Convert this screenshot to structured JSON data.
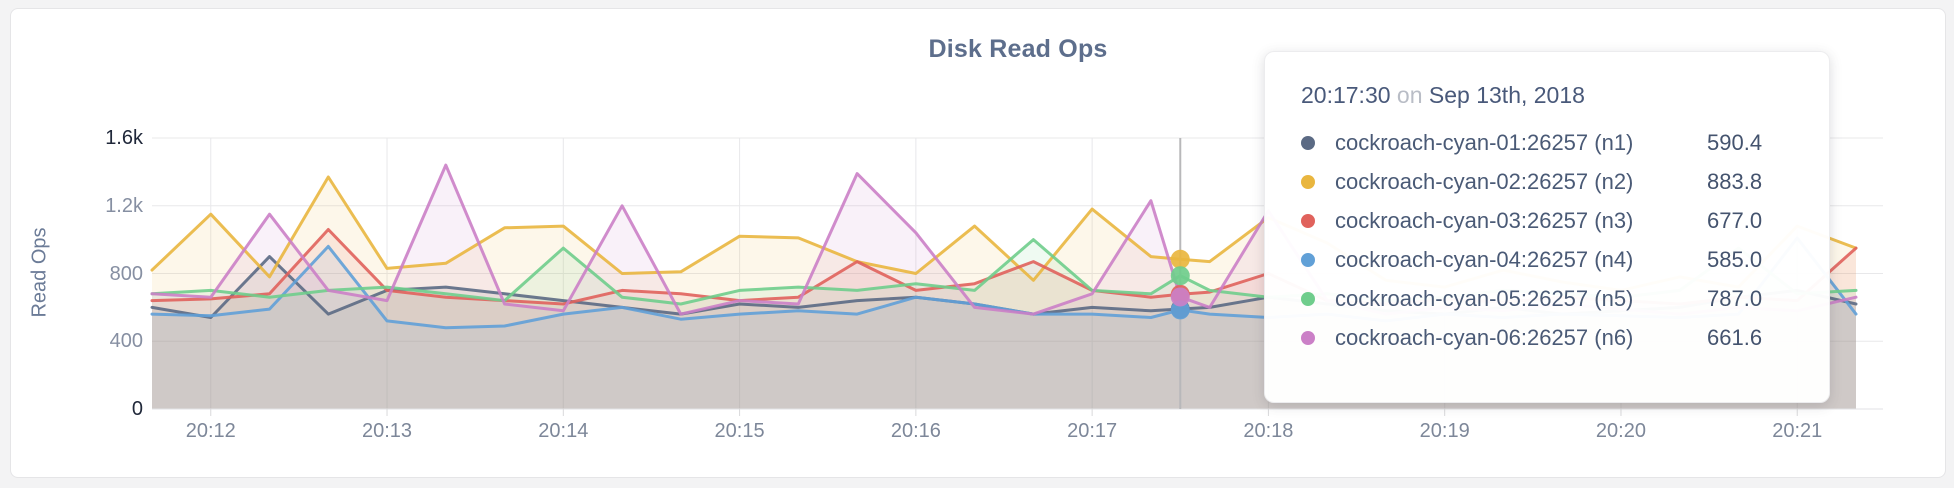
{
  "page": {
    "title": "Disk Read Ops"
  },
  "tooltip": {
    "time": "20:17:30",
    "preposition": "on",
    "date": "Sep 13th, 2018",
    "rows": [
      {
        "name": "cockroach-cyan-01:26257 (n1)",
        "value": "590.4",
        "color": "#5b6a84"
      },
      {
        "name": "cockroach-cyan-02:26257 (n2)",
        "value": "883.8",
        "color": "#e9b63f"
      },
      {
        "name": "cockroach-cyan-03:26257 (n3)",
        "value": "677.0",
        "color": "#e0625c"
      },
      {
        "name": "cockroach-cyan-04:26257 (n4)",
        "value": "585.0",
        "color": "#61a0d7"
      },
      {
        "name": "cockroach-cyan-05:26257 (n5)",
        "value": "787.0",
        "color": "#6fcd8c"
      },
      {
        "name": "cockroach-cyan-06:26257 (n6)",
        "value": "661.6",
        "color": "#cb80c7"
      }
    ]
  },
  "chart_data": {
    "type": "area",
    "title": "Disk Read Ops",
    "xlabel": "",
    "ylabel": "Read Ops",
    "ylim": [
      0,
      1600
    ],
    "grid": true,
    "legend_position": "tooltip",
    "x_domain_seconds": [
      0,
      580
    ],
    "x_start_time": "20:11:40",
    "x_seconds": [
      0,
      20,
      40,
      60,
      80,
      100,
      120,
      140,
      160,
      180,
      200,
      220,
      240,
      260,
      280,
      300,
      320,
      340,
      350,
      360,
      380,
      400,
      420,
      440,
      460,
      480,
      500,
      520,
      540,
      560,
      580
    ],
    "yticks": [
      {
        "value": 1600,
        "label": "1.6k",
        "strong": true
      },
      {
        "value": 1200,
        "label": "1.2k",
        "strong": false
      },
      {
        "value": 800,
        "label": "800",
        "strong": false
      },
      {
        "value": 400,
        "label": "400",
        "strong": false
      },
      {
        "value": 0,
        "label": "0",
        "strong": true
      }
    ],
    "xticks": [
      {
        "t": 20,
        "label": "20:12"
      },
      {
        "t": 80,
        "label": "20:13"
      },
      {
        "t": 140,
        "label": "20:14"
      },
      {
        "t": 200,
        "label": "20:15"
      },
      {
        "t": 260,
        "label": "20:16"
      },
      {
        "t": 320,
        "label": "20:17"
      },
      {
        "t": 380,
        "label": "20:18"
      },
      {
        "t": 440,
        "label": "20:19"
      },
      {
        "t": 500,
        "label": "20:20"
      },
      {
        "t": 560,
        "label": "20:21"
      }
    ],
    "hover": {
      "t": 350,
      "time_label": "20:17:30",
      "date_label": "Sep 13th, 2018"
    },
    "series": [
      {
        "name": "cockroach-cyan-01:26257 (n1)",
        "color": "#5b6a84",
        "values": [
          600,
          540,
          900,
          560,
          700,
          720,
          680,
          640,
          600,
          560,
          620,
          600,
          640,
          660,
          620,
          560,
          600,
          580,
          590.4,
          600,
          660,
          620,
          580,
          560,
          600,
          560,
          580,
          600,
          660,
          700,
          620
        ]
      },
      {
        "name": "cockroach-cyan-02:26257 (n2)",
        "color": "#e9b63f",
        "values": [
          820,
          1150,
          780,
          1370,
          830,
          860,
          1070,
          1080,
          800,
          810,
          1020,
          1010,
          870,
          800,
          1080,
          760,
          1180,
          900,
          883.8,
          870,
          1130,
          980,
          760,
          720,
          820,
          750,
          700,
          780,
          720,
          1080,
          950
        ]
      },
      {
        "name": "cockroach-cyan-03:26257 (n3)",
        "color": "#e0625c",
        "values": [
          640,
          650,
          680,
          1060,
          700,
          660,
          640,
          620,
          700,
          680,
          640,
          660,
          870,
          700,
          740,
          870,
          700,
          660,
          677,
          690,
          800,
          640,
          620,
          650,
          630,
          660,
          640,
          620,
          660,
          640,
          950
        ]
      },
      {
        "name": "cockroach-cyan-04:26257 (n4)",
        "color": "#61a0d7",
        "values": [
          560,
          550,
          590,
          960,
          520,
          480,
          490,
          560,
          600,
          530,
          560,
          580,
          560,
          660,
          620,
          560,
          560,
          540,
          585,
          560,
          540,
          560,
          520,
          560,
          540,
          560,
          550,
          540,
          560,
          1010,
          560
        ]
      },
      {
        "name": "cockroach-cyan-05:26257 (n5)",
        "color": "#6fcd8c",
        "values": [
          680,
          700,
          660,
          700,
          720,
          680,
          640,
          950,
          660,
          620,
          700,
          720,
          700,
          740,
          700,
          1000,
          700,
          680,
          787,
          700,
          660,
          680,
          640,
          660,
          700,
          680,
          660,
          700,
          950,
          680,
          700
        ]
      },
      {
        "name": "cockroach-cyan-06:26257 (n6)",
        "color": "#cb80c7",
        "values": [
          680,
          660,
          1150,
          700,
          640,
          1440,
          620,
          580,
          1200,
          560,
          640,
          620,
          1390,
          1040,
          600,
          560,
          680,
          1230,
          661.6,
          600,
          1170,
          640,
          560,
          600,
          580,
          620,
          590,
          560,
          600,
          580,
          660
        ]
      }
    ]
  }
}
